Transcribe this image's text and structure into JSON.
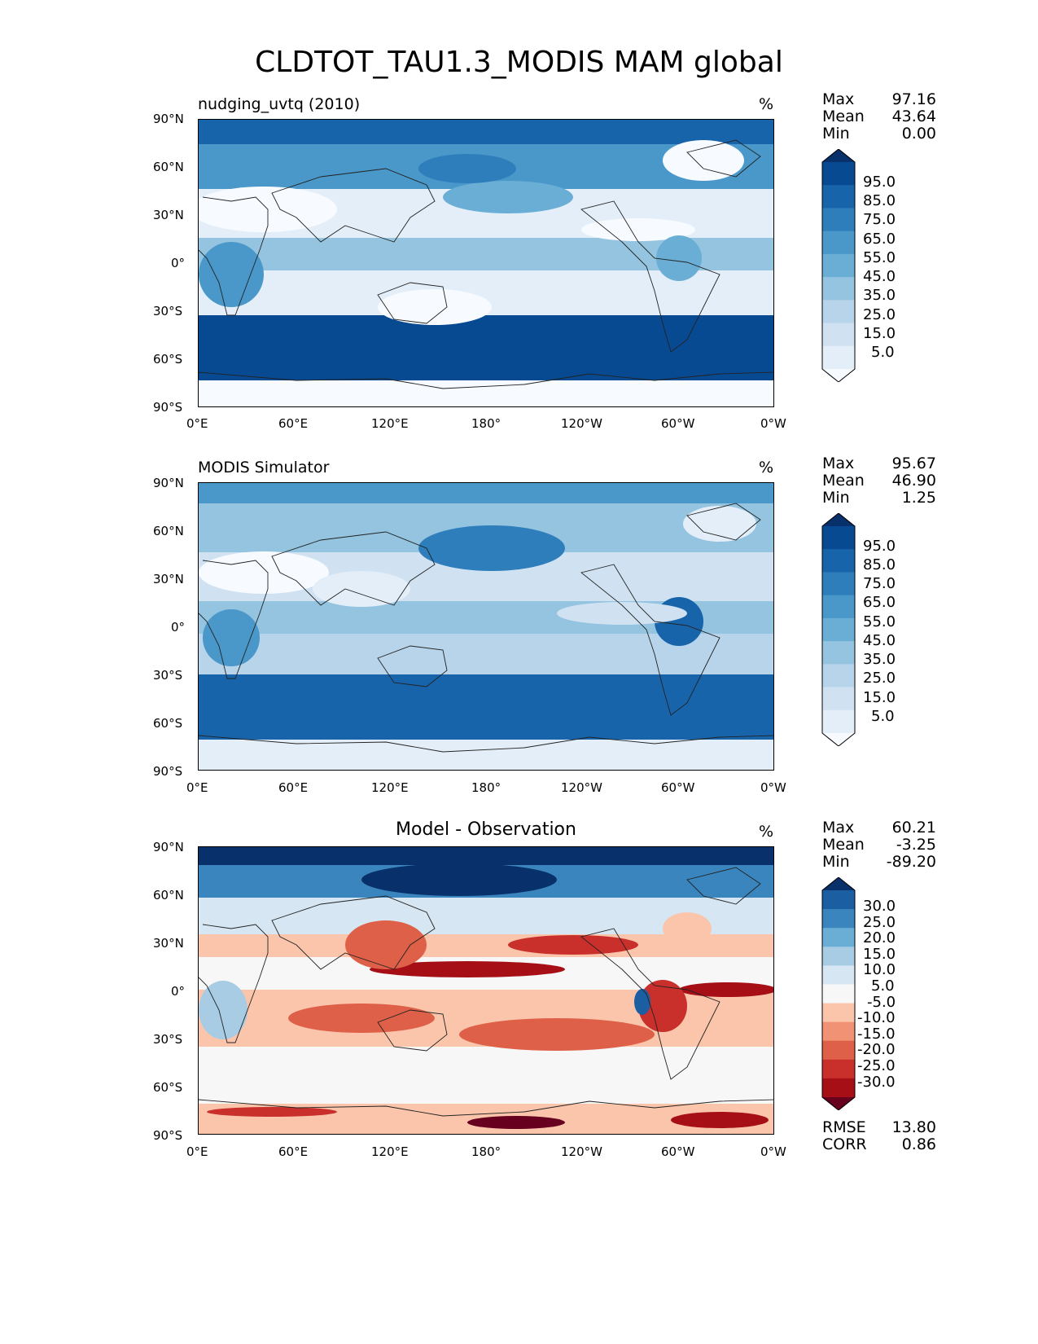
{
  "figure": {
    "title": "CLDTOT_TAU1.3_MODIS MAM global"
  },
  "panels": [
    {
      "id": "test",
      "left_title": "nudging_uvtq (2010)",
      "center_title": "",
      "units": "%",
      "stats": {
        "max_label": "Max",
        "max": "97.16",
        "mean_label": "Mean",
        "mean": "43.64",
        "min_label": "Min",
        "min": "0.00"
      },
      "colorbar_ticks": [
        "95.0",
        "85.0",
        "75.0",
        "65.0",
        "55.0",
        "45.0",
        "35.0",
        "25.0",
        "15.0",
        "5.0"
      ],
      "colormap": [
        "#f7fbff",
        "#e3eef9",
        "#d0e2f2",
        "#b7d4ea",
        "#94c4df",
        "#6aaed6",
        "#4a98c9",
        "#2e7ebc",
        "#1764ab",
        "#084a91",
        "#08306b"
      ]
    },
    {
      "id": "reference",
      "left_title": "MODIS Simulator",
      "center_title": "",
      "units": "%",
      "stats": {
        "max_label": "Max",
        "max": "95.67",
        "mean_label": "Mean",
        "mean": "46.90",
        "min_label": "Min",
        "min": "1.25"
      },
      "colorbar_ticks": [
        "95.0",
        "85.0",
        "75.0",
        "65.0",
        "55.0",
        "45.0",
        "35.0",
        "25.0",
        "15.0",
        "5.0"
      ],
      "colormap": [
        "#f7fbff",
        "#e3eef9",
        "#d0e2f2",
        "#b7d4ea",
        "#94c4df",
        "#6aaed6",
        "#4a98c9",
        "#2e7ebc",
        "#1764ab",
        "#084a91",
        "#08306b"
      ]
    },
    {
      "id": "diff",
      "left_title": "",
      "center_title": "Model - Observation",
      "units": "%",
      "stats": {
        "max_label": "Max",
        "max": "60.21",
        "mean_label": "Mean",
        "mean": "-3.25",
        "min_label": "Min",
        "min": "-89.20"
      },
      "colorbar_ticks": [
        "30.0",
        "25.0",
        "20.0",
        "15.0",
        "10.0",
        "5.0",
        "-5.0",
        "-10.0",
        "-15.0",
        "-20.0",
        "-25.0",
        "-30.0"
      ],
      "colormap": [
        "#67001f",
        "#a50f15",
        "#c9302c",
        "#de6048",
        "#f09273",
        "#fbc5ab",
        "#f7f7f7",
        "#d6e6f2",
        "#a7cce3",
        "#6aaed6",
        "#3a85bd",
        "#1c5ea2",
        "#08306b"
      ],
      "metrics": {
        "rmse_label": "RMSE",
        "rmse": "13.80",
        "corr_label": "CORR",
        "corr": "0.86"
      }
    }
  ],
  "axes": {
    "lat_ticks": [
      "90°N",
      "60°N",
      "30°N",
      "0°",
      "30°S",
      "60°S",
      "90°S"
    ],
    "lon_ticks": [
      "0°E",
      "60°E",
      "120°E",
      "180°",
      "120°W",
      "60°W",
      "0°W"
    ]
  }
}
